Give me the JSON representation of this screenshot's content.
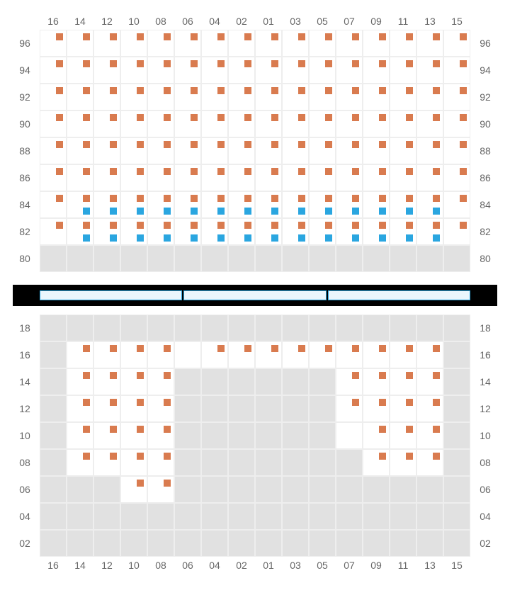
{
  "colors": {
    "orange": "#d97b4f",
    "blue": "#2aa6e0",
    "grid": "#eeeeee",
    "unavailable": "#e1e1e1",
    "label": "#666666",
    "stage_border": "#2aa6e0",
    "stage_fill": "#e9f6fd",
    "divider": "#000000"
  },
  "layout": {
    "cell_size": 38,
    "marker_size": 10,
    "columns": [
      "16",
      "14",
      "12",
      "10",
      "08",
      "06",
      "04",
      "02",
      "01",
      "03",
      "05",
      "07",
      "09",
      "11",
      "13",
      "15"
    ],
    "upper_rows": [
      "96",
      "94",
      "92",
      "90",
      "88",
      "86",
      "84",
      "82",
      "80"
    ],
    "lower_rows": [
      "18",
      "16",
      "14",
      "12",
      "10",
      "08",
      "06",
      "04",
      "02"
    ],
    "stage_segments": 3
  },
  "upper": {
    "96": {
      "avail": [
        0,
        1,
        2,
        3,
        4,
        5,
        6,
        7,
        8,
        9,
        10,
        11,
        12,
        13,
        14,
        15
      ],
      "markers": [
        {
          "cols": "all",
          "pos": "tr",
          "c": "orange"
        }
      ]
    },
    "94": {
      "avail": [
        0,
        1,
        2,
        3,
        4,
        5,
        6,
        7,
        8,
        9,
        10,
        11,
        12,
        13,
        14,
        15
      ],
      "markers": [
        {
          "cols": "all",
          "pos": "tr",
          "c": "orange"
        }
      ]
    },
    "92": {
      "avail": [
        0,
        1,
        2,
        3,
        4,
        5,
        6,
        7,
        8,
        9,
        10,
        11,
        12,
        13,
        14,
        15
      ],
      "markers": [
        {
          "cols": "all",
          "pos": "tr",
          "c": "orange"
        }
      ]
    },
    "90": {
      "avail": [
        0,
        1,
        2,
        3,
        4,
        5,
        6,
        7,
        8,
        9,
        10,
        11,
        12,
        13,
        14,
        15
      ],
      "markers": [
        {
          "cols": "all",
          "pos": "tr",
          "c": "orange"
        }
      ]
    },
    "88": {
      "avail": [
        0,
        1,
        2,
        3,
        4,
        5,
        6,
        7,
        8,
        9,
        10,
        11,
        12,
        13,
        14,
        15
      ],
      "markers": [
        {
          "cols": "all",
          "pos": "tr",
          "c": "orange"
        }
      ]
    },
    "86": {
      "avail": [
        0,
        1,
        2,
        3,
        4,
        5,
        6,
        7,
        8,
        9,
        10,
        11,
        12,
        13,
        14,
        15
      ],
      "markers": [
        {
          "cols": "all",
          "pos": "tr",
          "c": "orange"
        }
      ]
    },
    "84": {
      "avail": [
        0,
        1,
        2,
        3,
        4,
        5,
        6,
        7,
        8,
        9,
        10,
        11,
        12,
        13,
        14,
        15
      ],
      "markers": [
        {
          "cols": "all",
          "pos": "tr",
          "c": "orange"
        },
        {
          "cols": [
            1,
            2,
            3,
            4,
            5,
            6,
            7,
            8,
            9,
            10,
            11,
            12,
            13,
            14
          ],
          "pos": "br",
          "c": "blue"
        }
      ]
    },
    "82": {
      "avail": [
        0,
        1,
        2,
        3,
        4,
        5,
        6,
        7,
        8,
        9,
        10,
        11,
        12,
        13,
        14,
        15
      ],
      "markers": [
        {
          "cols": "all",
          "pos": "tr",
          "c": "orange"
        },
        {
          "cols": [
            1,
            2,
            3,
            4,
            5,
            6,
            7,
            8,
            9,
            10,
            11,
            12,
            13,
            14
          ],
          "pos": "br",
          "c": "blue"
        }
      ]
    },
    "80": {
      "avail": [],
      "markers": []
    }
  },
  "lower": {
    "18": {
      "avail": [],
      "markers": []
    },
    "16": {
      "avail": [
        1,
        2,
        3,
        4,
        5,
        6,
        7,
        8,
        9,
        10,
        11,
        12,
        13,
        14
      ],
      "markers": [
        {
          "cols": [
            1,
            2,
            3,
            4,
            6,
            7,
            8,
            9,
            10,
            11,
            12,
            13,
            14
          ],
          "pos": "tr",
          "c": "orange"
        }
      ]
    },
    "14": {
      "avail": [
        1,
        2,
        3,
        4,
        11,
        12,
        13,
        14
      ],
      "markers": [
        {
          "cols": [
            1,
            2,
            3,
            4,
            11,
            12,
            13,
            14
          ],
          "pos": "tr",
          "c": "orange"
        }
      ]
    },
    "12": {
      "avail": [
        1,
        2,
        3,
        4,
        11,
        12,
        13,
        14
      ],
      "markers": [
        {
          "cols": [
            1,
            2,
            3,
            4,
            11,
            12,
            13,
            14
          ],
          "pos": "tr",
          "c": "orange"
        }
      ]
    },
    "10": {
      "avail": [
        1,
        2,
        3,
        4,
        11,
        12,
        13,
        14
      ],
      "markers": [
        {
          "cols": [
            1,
            2,
            3,
            4,
            12,
            13,
            14
          ],
          "pos": "tr",
          "c": "orange"
        }
      ]
    },
    "08": {
      "avail": [
        1,
        2,
        3,
        4,
        12,
        13,
        14
      ],
      "markers": [
        {
          "cols": [
            1,
            2,
            3,
            4,
            12,
            13,
            14
          ],
          "pos": "tr",
          "c": "orange"
        }
      ]
    },
    "06": {
      "avail": [
        3,
        4
      ],
      "markers": [
        {
          "cols": [
            3,
            4
          ],
          "pos": "tr",
          "c": "orange"
        }
      ]
    },
    "04": {
      "avail": [],
      "markers": []
    },
    "02": {
      "avail": [],
      "markers": []
    }
  }
}
